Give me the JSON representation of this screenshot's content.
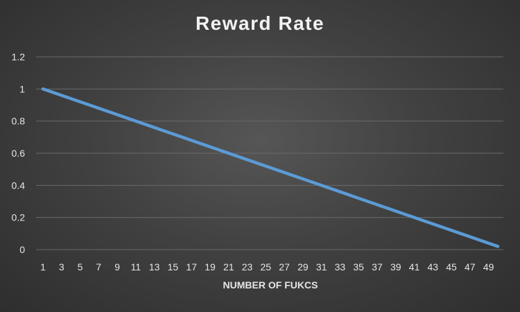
{
  "chart_data": {
    "type": "line",
    "title": "Reward Rate",
    "xlabel": "NUMBER OF FUKCS",
    "ylabel": "",
    "ylim": [
      0,
      1.2
    ],
    "y_ticks": [
      "0",
      "0.2",
      "0.4",
      "0.6",
      "0.8",
      "1",
      "1.2"
    ],
    "x_tick_labels": [
      "1",
      "3",
      "5",
      "7",
      "9",
      "11",
      "13",
      "15",
      "17",
      "19",
      "21",
      "23",
      "25",
      "27",
      "29",
      "31",
      "33",
      "35",
      "37",
      "39",
      "41",
      "43",
      "45",
      "47",
      "49"
    ],
    "x": [
      1,
      50
    ],
    "series": [
      {
        "values": [
          1.0,
          0.02
        ],
        "color": "#5b9bd5"
      }
    ],
    "grid": true,
    "legend": "none"
  },
  "colors": {
    "line": "#5b9bd5",
    "grid": "#6a6a6a",
    "text": "#e6e6e6",
    "title": "#f2f2f2"
  }
}
